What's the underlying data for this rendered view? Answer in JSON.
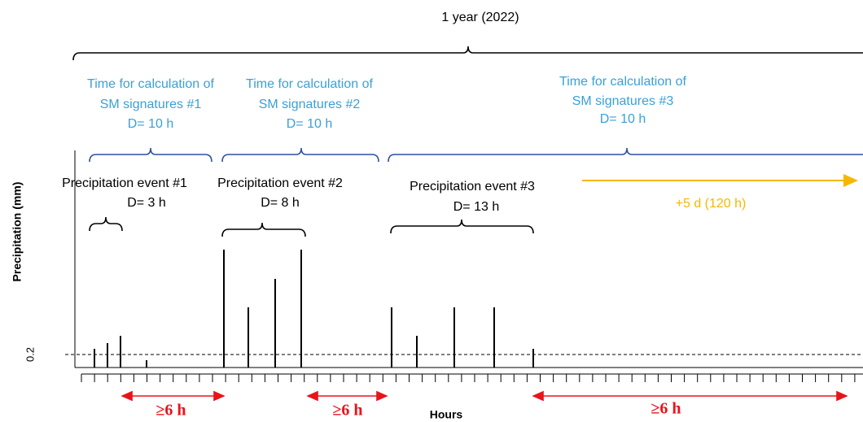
{
  "header": {
    "title": "1 year (2022)"
  },
  "windows": [
    {
      "lines": [
        "Time for calculation of",
        "SM signatures #1",
        "D= 10 h"
      ]
    },
    {
      "lines": [
        "Time for calculation of",
        "SM signatures #2",
        "D= 10 h"
      ]
    },
    {
      "lines": [
        "Time for calculation of",
        "SM signatures #3",
        "D= 10 h"
      ]
    }
  ],
  "events": [
    {
      "title": "Precipitation event #1",
      "duration": "D= 3 h"
    },
    {
      "title": "Precipitation event #2",
      "duration": "D= 8 h"
    },
    {
      "title": "Precipitation event #3",
      "duration": "D= 13 h"
    }
  ],
  "extension": "+5 d (120 h)",
  "axes": {
    "y_label": "Precipitation (mm)",
    "y_tick": "0.2",
    "x_label": "Hours"
  },
  "gaps": [
    "≥6 h",
    "≥6 h",
    "≥6 h"
  ]
}
